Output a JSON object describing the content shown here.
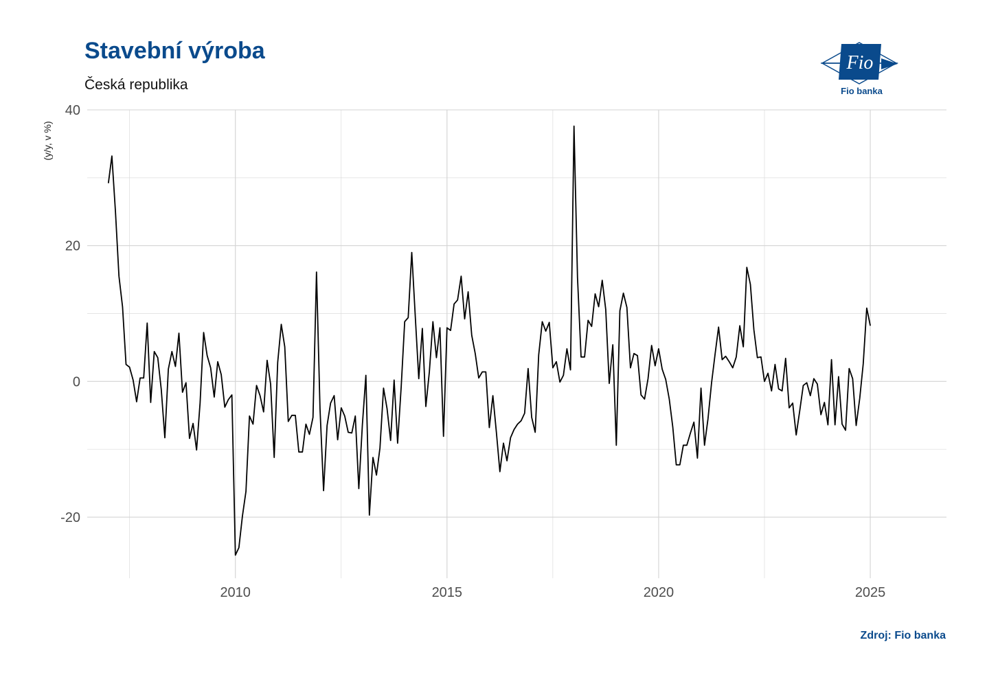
{
  "header": {
    "title": "Stavební výroba",
    "subtitle": "Česká republika"
  },
  "logo": {
    "text": "Fio banka",
    "mark_text": "Fio"
  },
  "footer": {
    "source": "Zdroj: Fio banka"
  },
  "colors": {
    "title": "#0a4a8c",
    "line": "#000000",
    "grid": "#d3d3d3"
  },
  "chart_data": {
    "type": "line",
    "title": "Stavební výroba",
    "subtitle": "Česká republika",
    "xlabel": "",
    "ylabel": "(y/y, v %)",
    "xlim": [
      2006.5,
      2026.8
    ],
    "ylim": [
      -29,
      40
    ],
    "x_ticks": [
      2010,
      2015,
      2020,
      2025
    ],
    "y_ticks": [
      -20,
      0,
      20,
      40
    ],
    "grid": true,
    "legend": "none",
    "x_start": 2007.0,
    "x_step_months": 1,
    "series": [
      {
        "values": [
          29.2,
          33.2,
          25.0,
          15.5,
          11.0,
          2.5,
          2.1,
          0.2,
          -3.0,
          0.5,
          0.5,
          8.6,
          -3.1,
          4.4,
          3.5,
          -1.2,
          -8.3,
          1.8,
          4.4,
          2.2,
          7.1,
          -1.6,
          -0.2,
          -8.4,
          -6.2,
          -10.1,
          -3.2,
          7.2,
          3.8,
          2.0,
          -2.3,
          2.9,
          1.0,
          -3.8,
          -2.7,
          -2.0,
          -25.6,
          -24.5,
          -19.8,
          -16.2,
          -5.1,
          -6.3,
          -0.6,
          -2.1,
          -4.5,
          3.1,
          -0.4,
          -11.2,
          2.8,
          8.4,
          5.1,
          -5.9,
          -5.0,
          -5.0,
          -10.4,
          -10.4,
          -6.3,
          -7.8,
          -5.3,
          16.1,
          -4.0,
          -16.1,
          -6.5,
          -3.2,
          -2.1,
          -8.6,
          -3.9,
          -5.1,
          -7.5,
          -7.6,
          -5.1,
          -15.8,
          -6.4,
          0.9,
          -19.7,
          -11.2,
          -13.8,
          -9.8,
          -1.0,
          -4.0,
          -8.7,
          0.2,
          -9.1,
          -0.8,
          8.8,
          9.4,
          19.0,
          9.6,
          0.4,
          7.8,
          -3.7,
          1.4,
          8.8,
          3.5,
          7.9,
          -8.1,
          7.9,
          7.5,
          11.4,
          12.0,
          15.5,
          9.2,
          13.2,
          6.8,
          4.1,
          0.5,
          1.4,
          1.4,
          -6.8,
          -2.1,
          -7.5,
          -13.3,
          -9.1,
          -11.7,
          -8.3,
          -7.1,
          -6.3,
          -5.8,
          -4.7,
          1.9,
          -5.3,
          -7.5,
          3.9,
          8.8,
          7.4,
          8.7,
          2.0,
          2.9,
          -0.1,
          0.9,
          4.8,
          1.7,
          37.6,
          15.3,
          3.6,
          3.6,
          9.0,
          8.1,
          12.9,
          11.0,
          14.9,
          10.6,
          -0.3,
          5.4,
          -9.4,
          10.4,
          13.0,
          10.9,
          2.0,
          4.1,
          3.8,
          -2.0,
          -2.6,
          0.4,
          5.3,
          2.3,
          4.8,
          1.8,
          0.3,
          -2.6,
          -6.7,
          -12.3,
          -12.3,
          -9.4,
          -9.4,
          -7.6,
          -6.0,
          -11.3,
          -1.0,
          -9.4,
          -5.5,
          -0.2,
          4.0,
          8.0,
          3.2,
          3.7,
          2.9,
          2.0,
          3.6,
          8.2,
          5.1,
          16.8,
          14.3,
          7.6,
          3.5,
          3.6,
          0.0,
          1.2,
          -1.4,
          2.5,
          -1.1,
          -1.4,
          3.4,
          -3.9,
          -3.2,
          -7.9,
          -4.3,
          -0.6,
          -0.2,
          -2.1,
          0.4,
          -0.4,
          -4.9,
          -3.1,
          -6.4,
          3.2,
          -6.4,
          0.7,
          -6.3,
          -7.2,
          1.9,
          0.4,
          -6.5,
          -2.5,
          2.6,
          10.8,
          8.2
        ]
      }
    ]
  }
}
